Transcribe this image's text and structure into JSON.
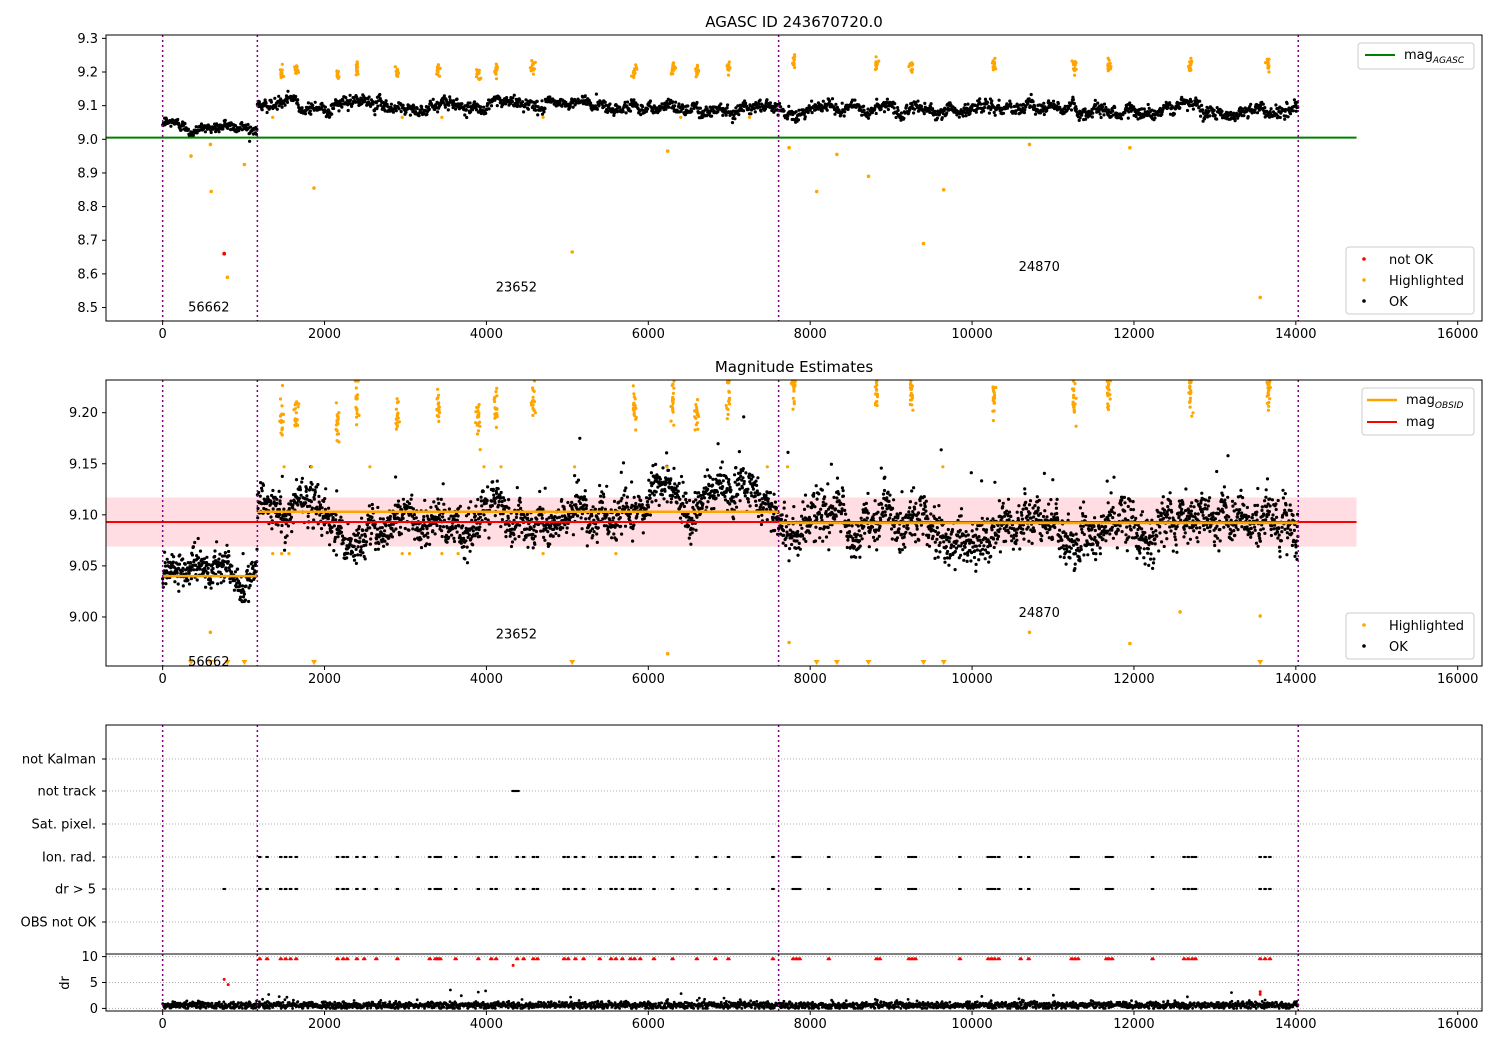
{
  "chart_data": [
    {
      "type": "scatter",
      "title": "AGASC ID 243670720.0",
      "xlabel": "",
      "ylabel": "",
      "xlim": [
        -700,
        16300
      ],
      "ylim": [
        8.46,
        9.31
      ],
      "xticks": [
        0,
        2000,
        4000,
        6000,
        8000,
        10000,
        12000,
        14000,
        16000
      ],
      "yticks": [
        8.5,
        8.6,
        8.7,
        8.8,
        8.9,
        9.0,
        9.1,
        9.2,
        9.3
      ],
      "ytick_decimals": 1,
      "obs_boundaries": [
        0,
        1170,
        7610,
        14030
      ],
      "obsid_labels": [
        {
          "text": "56662",
          "x": 570,
          "y": 8.5
        },
        {
          "text": "23652",
          "x": 4370,
          "y": 8.56
        },
        {
          "text": "24870",
          "x": 10830,
          "y": 8.62
        }
      ],
      "hlines": [
        {
          "name": "mag_AGASC",
          "y": 9.005,
          "x": [
            -700,
            14750
          ],
          "color": "#008000"
        }
      ],
      "ok_segments": [
        {
          "x": [
            0,
            1170
          ],
          "mean": 9.04,
          "noise": 0.012
        },
        {
          "x": [
            1170,
            7610
          ],
          "mean": 9.102,
          "noise": 0.013
        },
        {
          "x": [
            7610,
            14030
          ],
          "mean": 9.09,
          "noise": 0.014
        }
      ],
      "highlighted_clusters": [
        {
          "x": 1470,
          "y": 9.195
        },
        {
          "x": 1650,
          "y": 9.2
        },
        {
          "x": 2160,
          "y": 9.19
        },
        {
          "x": 2400,
          "y": 9.21
        },
        {
          "x": 2900,
          "y": 9.2
        },
        {
          "x": 3400,
          "y": 9.205
        },
        {
          "x": 3900,
          "y": 9.195
        },
        {
          "x": 4120,
          "y": 9.205
        },
        {
          "x": 4580,
          "y": 9.21
        },
        {
          "x": 5830,
          "y": 9.205
        },
        {
          "x": 6300,
          "y": 9.21
        },
        {
          "x": 6600,
          "y": 9.2
        },
        {
          "x": 6990,
          "y": 9.215
        },
        {
          "x": 7800,
          "y": 9.23
        },
        {
          "x": 8820,
          "y": 9.225
        },
        {
          "x": 9250,
          "y": 9.22
        },
        {
          "x": 10270,
          "y": 9.22
        },
        {
          "x": 11260,
          "y": 9.215
        },
        {
          "x": 11690,
          "y": 9.22
        },
        {
          "x": 12700,
          "y": 9.225
        },
        {
          "x": 13660,
          "y": 9.22
        }
      ],
      "highlighted_outliers": [
        {
          "x": 350,
          "y": 8.95
        },
        {
          "x": 590,
          "y": 8.985
        },
        {
          "x": 600,
          "y": 8.845
        },
        {
          "x": 1010,
          "y": 8.925
        },
        {
          "x": 1870,
          "y": 8.855
        },
        {
          "x": 5060,
          "y": 8.665
        },
        {
          "x": 6240,
          "y": 8.965
        },
        {
          "x": 7740,
          "y": 8.975
        },
        {
          "x": 8080,
          "y": 8.845
        },
        {
          "x": 8330,
          "y": 8.955
        },
        {
          "x": 8720,
          "y": 8.89
        },
        {
          "x": 9400,
          "y": 8.69
        },
        {
          "x": 9650,
          "y": 8.85
        },
        {
          "x": 10710,
          "y": 8.985
        },
        {
          "x": 11950,
          "y": 8.975
        },
        {
          "x": 13560,
          "y": 8.53
        },
        {
          "x": 800,
          "y": 8.59
        }
      ],
      "not_ok_points": [
        {
          "x": 760,
          "y": 8.66
        }
      ],
      "legend_upper": {
        "position": "upper right",
        "entries": [
          {
            "label": "mag",
            "sub": "AGASC",
            "color": "#008000",
            "marker": "line"
          }
        ]
      },
      "legend_lower": {
        "position": "lower right",
        "entries": [
          {
            "label": "not OK",
            "color": "#ff0000",
            "marker": "dot"
          },
          {
            "label": "Highlighted",
            "color": "#ffa500",
            "marker": "dot"
          },
          {
            "label": "OK",
            "color": "#000000",
            "marker": "dot"
          }
        ]
      }
    },
    {
      "type": "scatter",
      "title": "Magnitude Estimates",
      "xlabel": "",
      "ylabel": "",
      "xlim": [
        -700,
        16300
      ],
      "ylim": [
        8.952,
        9.232
      ],
      "xticks": [
        0,
        2000,
        4000,
        6000,
        8000,
        10000,
        12000,
        14000,
        16000
      ],
      "yticks": [
        9.0,
        9.05,
        9.1,
        9.15,
        9.2
      ],
      "ytick_decimals": 2,
      "obs_boundaries": [
        0,
        1170,
        7610,
        14030
      ],
      "obsid_labels": [
        {
          "text": "56662",
          "x": 570,
          "y": 8.956
        },
        {
          "text": "23652",
          "x": 4370,
          "y": 8.983
        },
        {
          "text": "24870",
          "x": 10830,
          "y": 9.004
        }
      ],
      "mag_band": {
        "x": [
          -700,
          14750
        ],
        "y": [
          9.069,
          9.117
        ],
        "color": "#ffdde2"
      },
      "mag_line": {
        "name": "mag",
        "y": 9.093,
        "x": [
          -700,
          14750
        ],
        "color": "#ff0000"
      },
      "obsid_lines": [
        {
          "x": [
            0,
            1170
          ],
          "y": 9.04
        },
        {
          "x": [
            1170,
            7610
          ],
          "y": 9.103
        },
        {
          "x": [
            7610,
            14030
          ],
          "y": 9.092
        }
      ],
      "ok_segments": [
        {
          "x": [
            0,
            1170
          ],
          "mean": 9.04,
          "noise": 0.009
        },
        {
          "x": [
            1170,
            7610
          ],
          "mean": 9.101,
          "noise": 0.012
        },
        {
          "x": [
            7610,
            14030
          ],
          "mean": 9.088,
          "noise": 0.014
        }
      ],
      "highlighted_clusters": [
        {
          "x": 1470,
          "y": 9.195
        },
        {
          "x": 1650,
          "y": 9.2
        },
        {
          "x": 2160,
          "y": 9.19
        },
        {
          "x": 2400,
          "y": 9.21
        },
        {
          "x": 2900,
          "y": 9.2
        },
        {
          "x": 3400,
          "y": 9.205
        },
        {
          "x": 3900,
          "y": 9.195
        },
        {
          "x": 4120,
          "y": 9.205
        },
        {
          "x": 4580,
          "y": 9.21
        },
        {
          "x": 5830,
          "y": 9.205
        },
        {
          "x": 6300,
          "y": 9.21
        },
        {
          "x": 6600,
          "y": 9.2
        },
        {
          "x": 6990,
          "y": 9.215
        },
        {
          "x": 7800,
          "y": 9.225
        },
        {
          "x": 8820,
          "y": 9.225
        },
        {
          "x": 9250,
          "y": 9.22
        },
        {
          "x": 10270,
          "y": 9.215
        },
        {
          "x": 11260,
          "y": 9.21
        },
        {
          "x": 11690,
          "y": 9.22
        },
        {
          "x": 12700,
          "y": 9.225
        },
        {
          "x": 13660,
          "y": 9.22
        }
      ],
      "highlighted_outliers": [
        {
          "x": 590,
          "y": 8.985
        },
        {
          "x": 10710,
          "y": 8.985
        },
        {
          "x": 11950,
          "y": 8.974
        },
        {
          "x": 13560,
          "y": 9.001
        },
        {
          "x": 12570,
          "y": 9.005
        },
        {
          "x": 7740,
          "y": 8.975
        },
        {
          "x": 6240,
          "y": 8.964
        }
      ],
      "highlighted_below_axis_x": [
        350,
        590,
        800,
        1010,
        1870,
        5060,
        8080,
        8330,
        8720,
        9400,
        9650,
        13560
      ],
      "legend_upper": {
        "position": "upper right",
        "entries": [
          {
            "label": "mag",
            "sub": "OBSID",
            "color": "#ffa500",
            "marker": "line"
          },
          {
            "label": "mag",
            "sub": "",
            "color": "#ff0000",
            "marker": "line"
          }
        ]
      },
      "legend_lower": {
        "position": "lower right",
        "entries": [
          {
            "label": "Highlighted",
            "color": "#ffa500",
            "marker": "dot"
          },
          {
            "label": "OK",
            "color": "#000000",
            "marker": "dot"
          }
        ]
      }
    },
    {
      "type": "scatter",
      "title": "",
      "xlabel": "",
      "ylabel": "",
      "xlim": [
        -700,
        16300
      ],
      "categories": [
        "not Kalman",
        "not track",
        "Sat. pixel.",
        "Ion. rad.",
        "dr > 5",
        "OBS not OK"
      ],
      "obs_boundaries": [
        0,
        1170,
        7610,
        14030
      ],
      "flag_points": {
        "not track": [
          4330,
          4350,
          4370,
          4390
        ],
        "Ion. rad.": [
          1200,
          1290,
          1460,
          1520,
          1580,
          1650,
          2160,
          2230,
          2280,
          2400,
          2490,
          2640,
          2900,
          3300,
          3370,
          3400,
          3430,
          3620,
          3900,
          4060,
          4120,
          4380,
          4460,
          4580,
          4630,
          4960,
          5010,
          5100,
          5200,
          5400,
          5540,
          5600,
          5680,
          5780,
          5830,
          5900,
          6070,
          6300,
          6600,
          6830,
          6990,
          7540,
          7790,
          7830,
          7870,
          8230,
          8820,
          8860,
          9220,
          9260,
          9300,
          9850,
          10200,
          10240,
          10280,
          10330,
          10600,
          10700,
          11230,
          11270,
          11310,
          11660,
          11690,
          11730,
          12230,
          12620,
          12670,
          12720,
          12760,
          13560,
          13620,
          13680
        ],
        "dr > 5": [
          760,
          1200,
          1290,
          1460,
          1520,
          1580,
          1650,
          2160,
          2230,
          2280,
          2400,
          2490,
          2640,
          2900,
          3300,
          3370,
          3400,
          3430,
          3620,
          3900,
          4060,
          4120,
          4380,
          4460,
          4580,
          4630,
          4960,
          5010,
          5100,
          5200,
          5400,
          5540,
          5600,
          5680,
          5780,
          5830,
          5900,
          6070,
          6300,
          6600,
          6830,
          6990,
          7540,
          7790,
          7830,
          7870,
          8230,
          8820,
          8860,
          9220,
          9260,
          9300,
          9850,
          10200,
          10240,
          10280,
          10330,
          10600,
          10700,
          11230,
          11270,
          11310,
          11660,
          11690,
          11730,
          12230,
          12620,
          12670,
          12720,
          12760,
          13560,
          13620,
          13680
        ]
      }
    },
    {
      "type": "scatter",
      "title": "",
      "xlabel": "",
      "ylabel": "dr",
      "xlim": [
        -700,
        16300
      ],
      "ylim": [
        -0.5,
        10.5
      ],
      "xticks": [
        0,
        2000,
        4000,
        6000,
        8000,
        10000,
        12000,
        14000,
        16000
      ],
      "yticks": [
        0,
        5,
        10
      ],
      "obs_boundaries": [
        0,
        1170,
        7610,
        14030
      ],
      "dr_ok_mean": 0.6,
      "dr_high_x": [
        1200,
        1290,
        1460,
        1520,
        1580,
        1650,
        2160,
        2230,
        2280,
        2400,
        2490,
        2640,
        2900,
        3300,
        3370,
        3400,
        3430,
        3620,
        3900,
        4060,
        4120,
        4380,
        4460,
        4580,
        4630,
        4960,
        5010,
        5100,
        5200,
        5400,
        5540,
        5600,
        5680,
        5780,
        5830,
        5900,
        6070,
        6300,
        6600,
        6830,
        6990,
        7540,
        7790,
        7830,
        7870,
        8230,
        8820,
        8860,
        9220,
        9260,
        9300,
        9850,
        10200,
        10240,
        10280,
        10330,
        10600,
        10700,
        11230,
        11270,
        11310,
        11660,
        11690,
        11730,
        12230,
        12620,
        12670,
        12720,
        12760,
        13560,
        13620,
        13680
      ],
      "dr_high_value": 9.8,
      "dr_red_extra": [
        {
          "x": 760,
          "y": 5.6
        },
        {
          "x": 810,
          "y": 4.6
        },
        {
          "x": 4330,
          "y": 8.3
        },
        {
          "x": 13560,
          "y": 3.2
        },
        {
          "x": 13560,
          "y": 2.7
        }
      ]
    }
  ],
  "colors": {
    "ok": "#000000",
    "highlighted": "#ffa500",
    "not_ok": "#ff0000",
    "boundary": "#800080",
    "agasc": "#008000",
    "mag": "#ff0000",
    "obsid": "#ffa500"
  }
}
